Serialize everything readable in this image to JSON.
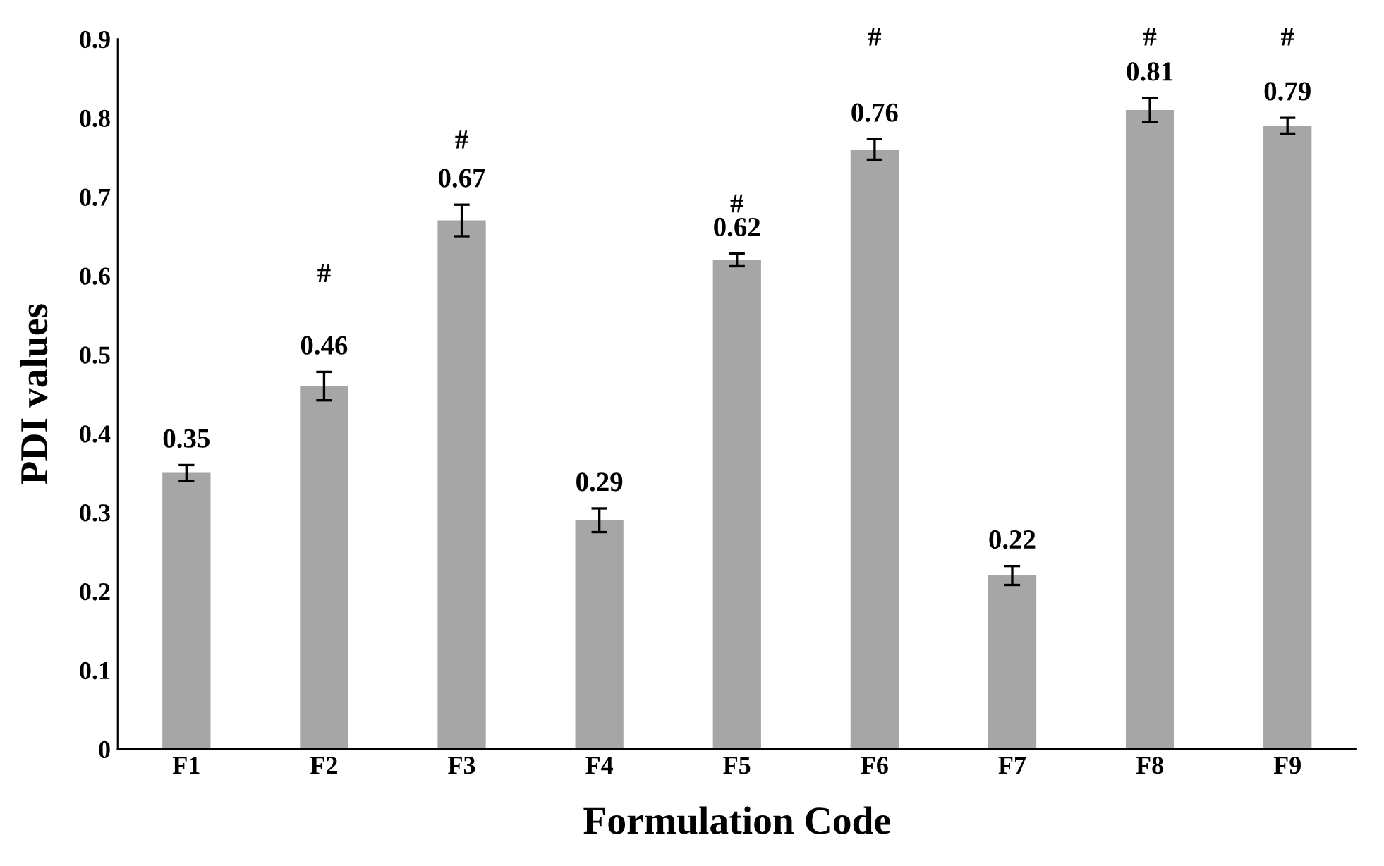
{
  "chart_data": {
    "type": "bar",
    "xlabel": "Formulation Code",
    "ylabel": "PDI values",
    "categories": [
      "F1",
      "F2",
      "F3",
      "F4",
      "F5",
      "F6",
      "F7",
      "F8",
      "F9"
    ],
    "values": [
      0.35,
      0.46,
      0.67,
      0.29,
      0.62,
      0.76,
      0.22,
      0.81,
      0.79
    ],
    "errors": [
      0.01,
      0.018,
      0.02,
      0.015,
      0.008,
      0.013,
      0.012,
      0.015,
      0.01
    ],
    "color": "#a6a6a6",
    "data_labels": true,
    "ylim": [
      0,
      0.9
    ],
    "yticks": [
      {
        "value": 0,
        "label": "0"
      },
      0.1,
      0.2,
      0.3,
      0.4,
      0.5,
      0.6,
      0.7,
      0.8,
      0.9
    ],
    "grid": false,
    "legend": false,
    "annotations": [
      "#",
      "#",
      "#",
      "#",
      "#",
      "#"
    ]
  }
}
